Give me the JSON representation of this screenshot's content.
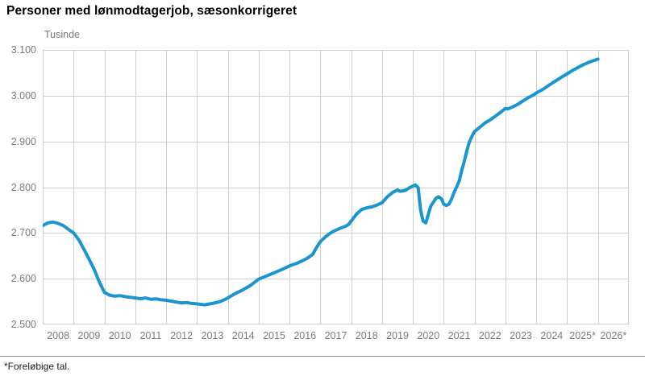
{
  "page": {
    "title": "Personer med lønmodtagerjob, sæsonkorrigeret",
    "footnote": "*Foreløbige tal."
  },
  "colors": {
    "line": "#1b95d2",
    "grid": "#d0d0c8",
    "tick_text": "#7c7c74",
    "title_text": "#000000",
    "footnote_rule": "#8c8c8c",
    "background": "#ffffff"
  },
  "chart_data": {
    "type": "line",
    "title": "Personer med lønmodtagerjob, sæsonkorrigeret",
    "unit_label": "Tusinde",
    "xlabel": "",
    "ylabel": "Tusinde",
    "grid": true,
    "legend": "none",
    "x_range": [
      2008,
      2027
    ],
    "y_range": [
      2500,
      3100
    ],
    "y_tick_step": 100,
    "x_ticks": [
      "2008",
      "2009",
      "2010",
      "2011",
      "2012",
      "2013",
      "2014",
      "2015",
      "2016",
      "2017",
      "2018",
      "2019",
      "2020",
      "2021",
      "2022",
      "2023",
      "2024",
      "2025*",
      "2026*"
    ],
    "y_ticks": [
      "3.100",
      "3.000",
      "2.900",
      "2.800",
      "2.700",
      "2.600",
      "2.500"
    ],
    "series": [
      {
        "name": "Personer med lønmodtagerjob (tusinde), sæsonkorrigeret",
        "points": [
          [
            2008.0,
            2716
          ],
          [
            2008.08,
            2719
          ],
          [
            2008.17,
            2722
          ],
          [
            2008.33,
            2724
          ],
          [
            2008.5,
            2721
          ],
          [
            2008.67,
            2716
          ],
          [
            2008.83,
            2708
          ],
          [
            2009.0,
            2700
          ],
          [
            2009.17,
            2685
          ],
          [
            2009.33,
            2665
          ],
          [
            2009.5,
            2643
          ],
          [
            2009.67,
            2620
          ],
          [
            2009.83,
            2594
          ],
          [
            2010.0,
            2570
          ],
          [
            2010.17,
            2564
          ],
          [
            2010.33,
            2562
          ],
          [
            2010.5,
            2563
          ],
          [
            2010.75,
            2560
          ],
          [
            2011.0,
            2558
          ],
          [
            2011.17,
            2556
          ],
          [
            2011.33,
            2558
          ],
          [
            2011.5,
            2555
          ],
          [
            2011.67,
            2556
          ],
          [
            2011.83,
            2554
          ],
          [
            2012.0,
            2553
          ],
          [
            2012.25,
            2550
          ],
          [
            2012.5,
            2547
          ],
          [
            2012.67,
            2548
          ],
          [
            2012.83,
            2546
          ],
          [
            2013.0,
            2545
          ],
          [
            2013.25,
            2543
          ],
          [
            2013.5,
            2546
          ],
          [
            2013.75,
            2550
          ],
          [
            2013.92,
            2555
          ],
          [
            2014.0,
            2558
          ],
          [
            2014.25,
            2568
          ],
          [
            2014.5,
            2576
          ],
          [
            2014.75,
            2586
          ],
          [
            2015.0,
            2599
          ],
          [
            2015.25,
            2606
          ],
          [
            2015.5,
            2613
          ],
          [
            2015.75,
            2620
          ],
          [
            2016.0,
            2628
          ],
          [
            2016.25,
            2634
          ],
          [
            2016.5,
            2642
          ],
          [
            2016.58,
            2645
          ],
          [
            2016.75,
            2653
          ],
          [
            2016.83,
            2663
          ],
          [
            2016.92,
            2673
          ],
          [
            2017.0,
            2681
          ],
          [
            2017.17,
            2692
          ],
          [
            2017.33,
            2700
          ],
          [
            2017.5,
            2706
          ],
          [
            2017.67,
            2711
          ],
          [
            2017.83,
            2715
          ],
          [
            2017.92,
            2719
          ],
          [
            2018.0,
            2726
          ],
          [
            2018.17,
            2741
          ],
          [
            2018.33,
            2751
          ],
          [
            2018.5,
            2755
          ],
          [
            2018.67,
            2757
          ],
          [
            2018.83,
            2761
          ],
          [
            2019.0,
            2766
          ],
          [
            2019.17,
            2779
          ],
          [
            2019.33,
            2788
          ],
          [
            2019.5,
            2794
          ],
          [
            2019.58,
            2791
          ],
          [
            2019.75,
            2793
          ],
          [
            2019.92,
            2800
          ],
          [
            2020.08,
            2805
          ],
          [
            2020.17,
            2799
          ],
          [
            2020.25,
            2750
          ],
          [
            2020.33,
            2726
          ],
          [
            2020.42,
            2722
          ],
          [
            2020.5,
            2741
          ],
          [
            2020.58,
            2759
          ],
          [
            2020.67,
            2768
          ],
          [
            2020.75,
            2776
          ],
          [
            2020.83,
            2779
          ],
          [
            2020.92,
            2775
          ],
          [
            2021.0,
            2763
          ],
          [
            2021.08,
            2760
          ],
          [
            2021.17,
            2763
          ],
          [
            2021.25,
            2774
          ],
          [
            2021.33,
            2788
          ],
          [
            2021.42,
            2801
          ],
          [
            2021.5,
            2814
          ],
          [
            2021.58,
            2836
          ],
          [
            2021.67,
            2858
          ],
          [
            2021.75,
            2880
          ],
          [
            2021.83,
            2899
          ],
          [
            2021.92,
            2912
          ],
          [
            2022.0,
            2922
          ],
          [
            2022.17,
            2931
          ],
          [
            2022.33,
            2940
          ],
          [
            2022.5,
            2947
          ],
          [
            2022.67,
            2955
          ],
          [
            2022.83,
            2963
          ],
          [
            2022.92,
            2968
          ],
          [
            2023.0,
            2972
          ],
          [
            2023.08,
            2971
          ],
          [
            2023.25,
            2976
          ],
          [
            2023.42,
            2982
          ],
          [
            2023.58,
            2989
          ],
          [
            2023.75,
            2996
          ],
          [
            2023.92,
            3002
          ],
          [
            2024.0,
            3006
          ],
          [
            2024.17,
            3012
          ],
          [
            2024.33,
            3019
          ],
          [
            2024.5,
            3027
          ],
          [
            2024.67,
            3034
          ],
          [
            2024.83,
            3041
          ],
          [
            2025.0,
            3048
          ],
          [
            2025.17,
            3055
          ],
          [
            2025.33,
            3061
          ],
          [
            2025.5,
            3067
          ],
          [
            2025.67,
            3072
          ],
          [
            2025.83,
            3076
          ],
          [
            2026.0,
            3080
          ]
        ]
      }
    ]
  }
}
